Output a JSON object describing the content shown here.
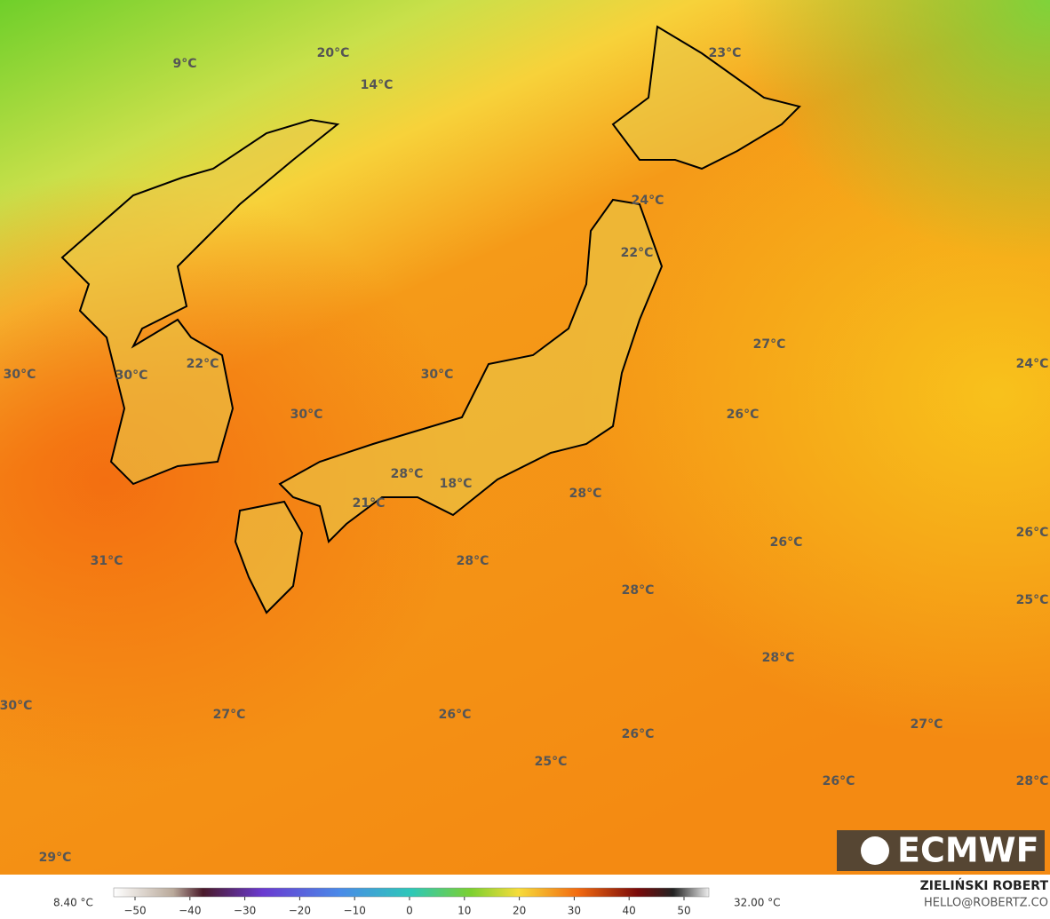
{
  "map_labels": [
    "9°C",
    "20°C",
    "14°C",
    "23°C",
    "24°C",
    "22°C",
    "27°C",
    "24°C",
    "30°C",
    "30°C",
    "22°C",
    "30°C",
    "30°C",
    "26°C",
    "28°C",
    "18°C",
    "28°C",
    "21°C",
    "26°C",
    "26°C",
    "31°C",
    "28°C",
    "28°C",
    "25°C",
    "28°C",
    "30°C",
    "27°C",
    "26°C",
    "27°C",
    "26°C",
    "25°C",
    "26°C",
    "28°C",
    "29°C"
  ],
  "logo": "ECMWF",
  "colorbar": {
    "min_label": "8.40 °C",
    "max_label": "32.00 °C",
    "ticks": [
      {
        "value": -50,
        "label": "−50"
      },
      {
        "value": -40,
        "label": "−40"
      },
      {
        "value": -30,
        "label": "−30"
      },
      {
        "value": -20,
        "label": "−20"
      },
      {
        "value": -10,
        "label": "−10"
      },
      0,
      10,
      20,
      30,
      40,
      50
    ]
  },
  "credits": {
    "author": "ZIELIŃSKI ROBERT",
    "contact": "HELLO@ROBERTZ.CO"
  }
}
